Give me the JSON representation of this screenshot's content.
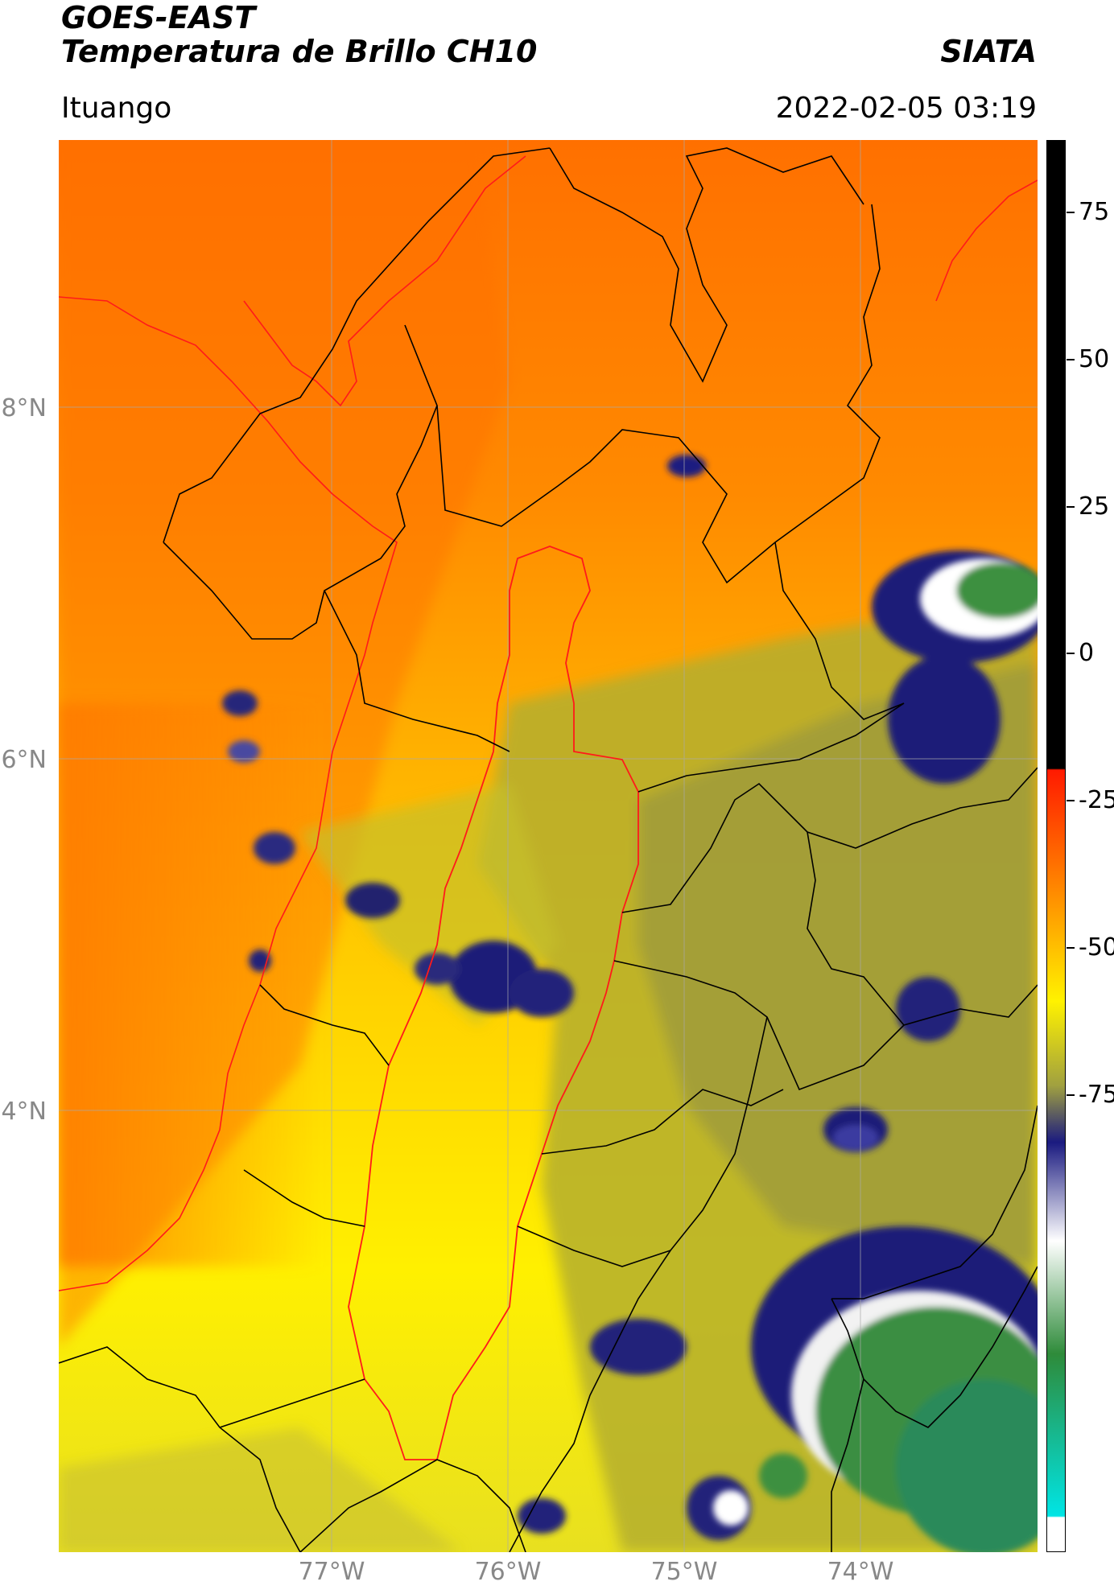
{
  "header": {
    "title_line1": "GOES-EAST",
    "title_line2": "Temperatura de Brillo CH10",
    "brand": "SIATA",
    "location": "Ituango",
    "timestamp": "2022-02-05 03:19"
  },
  "map": {
    "lat_labels": [
      "8°N",
      "6°N",
      "4°N"
    ],
    "lon_labels": [
      "77°W",
      "76°W",
      "75°W",
      "74°W"
    ],
    "boundary_color": "#000000",
    "basin_color": "#ff1a1a",
    "grid_color": "#aaaaaa"
  },
  "colorbar": {
    "ticks": [
      "75",
      "50",
      "25",
      "0",
      "-25",
      "-50",
      "-75"
    ],
    "colors": {
      "black": "#000000",
      "red": "#ff1a00",
      "orange": "#ff7a00",
      "yellow": "#fff200",
      "olive": "#a0a040",
      "navy": "#1a1a80",
      "white": "#ffffff",
      "green": "#2e8b3a",
      "cyan": "#00e5e5"
    }
  }
}
